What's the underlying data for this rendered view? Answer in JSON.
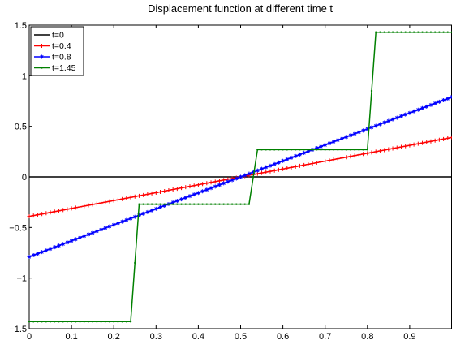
{
  "chart_data": {
    "type": "line",
    "title": "Displacement function at different time t",
    "xlabel": "",
    "ylabel": "",
    "xlim": [
      0,
      1
    ],
    "ylim": [
      -1.5,
      1.5
    ],
    "xticks": [
      0,
      0.1,
      0.2,
      0.3,
      0.4,
      0.5,
      0.6,
      0.7,
      0.8,
      0.9
    ],
    "xtick_labels": [
      "0",
      "0.1",
      "0.2",
      "0.3",
      "0.4",
      "0.5",
      "0.6",
      "0.7",
      "0.8",
      "0.9"
    ],
    "yticks": [
      -1.5,
      -1,
      -0.5,
      0,
      0.5,
      1,
      1.5
    ],
    "ytick_labels": [
      "−1.5",
      "−1",
      "−0.5",
      "0",
      "0.5",
      "1",
      "1.5"
    ],
    "grid": false,
    "legend_position": "top-left",
    "series": [
      {
        "name": "t=0",
        "color": "#000000",
        "marker": "none",
        "x": [
          0,
          1
        ],
        "y": [
          0,
          0
        ]
      },
      {
        "name": "t=0.4",
        "color": "#ff0000",
        "marker": "plus",
        "x": [
          0,
          1
        ],
        "y": [
          -0.39,
          0.39
        ]
      },
      {
        "name": "t=0.8",
        "color": "#0000ff",
        "marker": "star",
        "x": [
          0,
          1
        ],
        "y": [
          -0.79,
          0.79
        ]
      },
      {
        "name": "t=1.45",
        "color": "#008000",
        "marker": "dot",
        "x": [
          0,
          0.24,
          0.26,
          0.52,
          0.54,
          0.8,
          0.82,
          1
        ],
        "y": [
          -1.43,
          -1.43,
          -0.27,
          -0.27,
          0.27,
          0.27,
          1.43,
          1.43
        ]
      }
    ]
  }
}
